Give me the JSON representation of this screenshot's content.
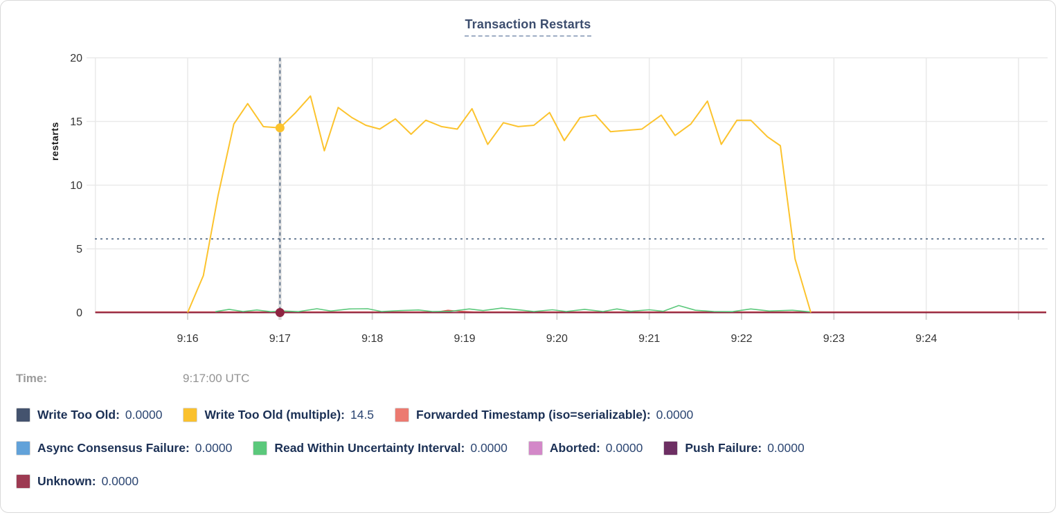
{
  "panel": {
    "title": "Transaction Restarts"
  },
  "y_axis": {
    "label": "restarts"
  },
  "time_row": {
    "label": "Time:",
    "value": "9:17:00 UTC"
  },
  "legend": {
    "items": [
      {
        "label": "Write Too Old:",
        "value": "0.0000",
        "color": "#44536e"
      },
      {
        "label": "Write Too Old (multiple):",
        "value": "14.5",
        "color": "#fac12e"
      },
      {
        "label": "Forwarded Timestamp (iso=serializable):",
        "value": "0.0000",
        "color": "#ec7a70"
      },
      {
        "label": "Async Consensus Failure:",
        "value": "0.0000",
        "color": "#62a2d9"
      },
      {
        "label": "Read Within Uncertainty Interval:",
        "value": "0.0000",
        "color": "#5bc87b"
      },
      {
        "label": "Aborted:",
        "value": "0.0000",
        "color": "#d388c8"
      },
      {
        "label": "Push Failure:",
        "value": "0.0000",
        "color": "#6d2f63"
      },
      {
        "label": "Unknown:",
        "value": "0.0000",
        "color": "#9d3a52"
      }
    ]
  },
  "chart_data": {
    "type": "line",
    "title": "Transaction Restarts",
    "ylabel": "restarts",
    "ylim": [
      0,
      20
    ],
    "y_ticks": [
      0,
      5,
      10,
      15,
      20
    ],
    "x_tick_labels": [
      "9:16",
      "9:17",
      "9:18",
      "9:19",
      "9:20",
      "9:21",
      "9:22",
      "9:23",
      "9:24"
    ],
    "x_unit": "minutes since 9:15:00 UTC",
    "x_domain": [
      0,
      10.3
    ],
    "grid": true,
    "legend_position": "bottom",
    "hover": {
      "time": "9:17:00 UTC",
      "t_minutes": 2,
      "hline_value": 5.78,
      "points": [
        {
          "series": "Write Too Old (multiple)",
          "value": 14.5
        },
        {
          "series": "Unknown",
          "value": 0
        }
      ]
    },
    "series": [
      {
        "name": "Write Too Old",
        "color": "#44536e",
        "hover_value": "0.0000",
        "points": [
          [
            0,
            0
          ],
          [
            10.3,
            0
          ]
        ]
      },
      {
        "name": "Async Consensus Failure",
        "color": "#62a2d9",
        "hover_value": "0.0000",
        "points": [
          [
            0,
            0
          ],
          [
            10.3,
            0
          ]
        ]
      },
      {
        "name": "Aborted",
        "color": "#d388c8",
        "hover_value": "0.0000",
        "points": [
          [
            0,
            0
          ],
          [
            10.3,
            0
          ]
        ]
      },
      {
        "name": "Push Failure",
        "color": "#6d2f63",
        "hover_value": "0.0000",
        "points": [
          [
            0,
            0
          ],
          [
            10.3,
            0
          ]
        ]
      },
      {
        "name": "Forwarded Timestamp (iso=serializable)",
        "color": "#ec7a70",
        "line_color": "#e0544c",
        "hover_value": "0.0000",
        "points": [
          [
            0,
            0.05
          ],
          [
            3.7,
            0.05
          ],
          [
            3.82,
            0.18
          ],
          [
            3.95,
            0.1
          ],
          [
            4.1,
            0.05
          ],
          [
            10.3,
            0.05
          ]
        ]
      },
      {
        "name": "Unknown",
        "color": "#9d3a52",
        "line_color": "#8e2440",
        "hover_value": "0.0000",
        "points": [
          [
            0,
            0
          ],
          [
            10.3,
            0
          ]
        ]
      },
      {
        "name": "Read Within Uncertainty Interval",
        "color": "#5bc87b",
        "hover_value": "0.0000",
        "points": [
          [
            1.3,
            0.07
          ],
          [
            1.45,
            0.25
          ],
          [
            1.6,
            0.08
          ],
          [
            1.75,
            0.2
          ],
          [
            1.9,
            0.07
          ],
          [
            2.05,
            0.12
          ],
          [
            2.2,
            0.07
          ],
          [
            2.4,
            0.3
          ],
          [
            2.55,
            0.12
          ],
          [
            2.75,
            0.28
          ],
          [
            2.95,
            0.3
          ],
          [
            3.1,
            0.08
          ],
          [
            3.3,
            0.15
          ],
          [
            3.5,
            0.2
          ],
          [
            3.65,
            0.08
          ],
          [
            3.85,
            0.1
          ],
          [
            4.05,
            0.28
          ],
          [
            4.2,
            0.15
          ],
          [
            4.4,
            0.35
          ],
          [
            4.6,
            0.2
          ],
          [
            4.75,
            0.08
          ],
          [
            4.95,
            0.22
          ],
          [
            5.1,
            0.08
          ],
          [
            5.3,
            0.25
          ],
          [
            5.5,
            0.08
          ],
          [
            5.65,
            0.28
          ],
          [
            5.8,
            0.1
          ],
          [
            6.0,
            0.22
          ],
          [
            6.15,
            0.1
          ],
          [
            6.32,
            0.55
          ],
          [
            6.5,
            0.18
          ],
          [
            6.7,
            0.08
          ],
          [
            6.9,
            0.07
          ],
          [
            7.1,
            0.28
          ],
          [
            7.3,
            0.12
          ],
          [
            7.55,
            0.18
          ],
          [
            7.75,
            0.05
          ]
        ]
      },
      {
        "name": "Write Too Old (multiple)",
        "color": "#fac12e",
        "line_color": "#fcc32d",
        "hover_value": "14.5",
        "points": [
          [
            1.0,
            0
          ],
          [
            1.17,
            2.9
          ],
          [
            1.33,
            9.2
          ],
          [
            1.5,
            14.8
          ],
          [
            1.65,
            16.4
          ],
          [
            1.82,
            14.6
          ],
          [
            2.0,
            14.5
          ],
          [
            2.17,
            15.7
          ],
          [
            2.33,
            17.0
          ],
          [
            2.48,
            12.7
          ],
          [
            2.63,
            16.1
          ],
          [
            2.78,
            15.3
          ],
          [
            2.93,
            14.7
          ],
          [
            3.08,
            14.4
          ],
          [
            3.25,
            15.2
          ],
          [
            3.42,
            14.0
          ],
          [
            3.58,
            15.1
          ],
          [
            3.75,
            14.6
          ],
          [
            3.92,
            14.4
          ],
          [
            4.08,
            16.0
          ],
          [
            4.25,
            13.2
          ],
          [
            4.42,
            14.9
          ],
          [
            4.58,
            14.6
          ],
          [
            4.75,
            14.7
          ],
          [
            4.92,
            15.7
          ],
          [
            5.08,
            13.5
          ],
          [
            5.25,
            15.3
          ],
          [
            5.42,
            15.5
          ],
          [
            5.58,
            14.2
          ],
          [
            5.75,
            14.3
          ],
          [
            5.92,
            14.4
          ],
          [
            6.13,
            15.5
          ],
          [
            6.28,
            13.9
          ],
          [
            6.45,
            14.8
          ],
          [
            6.63,
            16.6
          ],
          [
            6.78,
            13.2
          ],
          [
            6.95,
            15.1
          ],
          [
            7.1,
            15.1
          ],
          [
            7.28,
            13.8
          ],
          [
            7.42,
            13.1
          ],
          [
            7.58,
            4.2
          ],
          [
            7.75,
            0
          ]
        ]
      }
    ]
  }
}
